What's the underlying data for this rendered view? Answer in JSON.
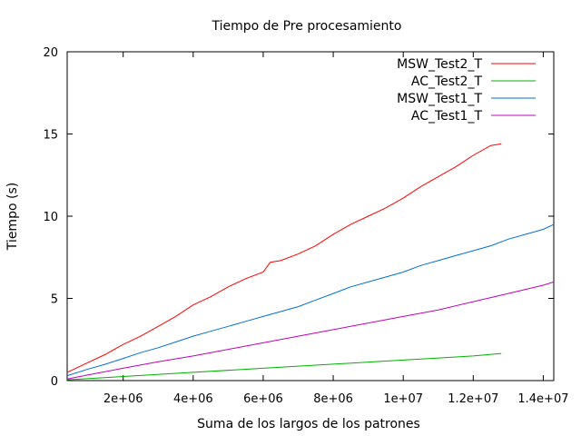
{
  "chart_data": {
    "type": "line",
    "title": "Tiempo de Pre procesamiento",
    "xlabel": "Suma de los largos de los patrones",
    "ylabel": "Tiempo (s)",
    "xlim": [
      400000,
      14300000
    ],
    "ylim": [
      0,
      20
    ],
    "x_ticks": [
      2000000,
      4000000,
      6000000,
      8000000,
      10000000,
      12000000,
      14000000
    ],
    "x_tick_labels": [
      "2e+06",
      "4e+06",
      "6e+06",
      "8e+06",
      "1e+07",
      "1.2e+07",
      "1.4e+07"
    ],
    "y_ticks": [
      0,
      5,
      10,
      15,
      20
    ],
    "y_tick_labels": [
      "0",
      "5",
      "10",
      "15",
      "20"
    ],
    "grid": false,
    "legend_position": "top-right",
    "series": [
      {
        "name": "MSW_Test2_T",
        "color": "#ff0000",
        "x": [
          400000,
          1000000,
          1500000,
          2000000,
          2500000,
          3000000,
          3500000,
          4000000,
          4500000,
          5000000,
          5500000,
          6000000,
          6200000,
          6500000,
          7000000,
          7500000,
          8000000,
          8500000,
          9000000,
          9500000,
          10000000,
          10500000,
          11000000,
          11500000,
          12000000,
          12500000,
          12800000
        ],
        "y": [
          0.5,
          1.1,
          1.6,
          2.2,
          2.7,
          3.3,
          3.9,
          4.6,
          5.1,
          5.7,
          6.2,
          6.6,
          7.2,
          7.3,
          7.7,
          8.2,
          8.9,
          9.5,
          10.0,
          10.5,
          11.1,
          11.8,
          12.4,
          13.0,
          13.7,
          14.3,
          14.4
        ]
      },
      {
        "name": "AC_Test2_T",
        "color": "#00b000",
        "x": [
          400000,
          2000000,
          4000000,
          6000000,
          8000000,
          10000000,
          12000000,
          12800000
        ],
        "y": [
          0.05,
          0.25,
          0.5,
          0.75,
          1.0,
          1.25,
          1.5,
          1.65
        ]
      },
      {
        "name": "MSW_Test1_T",
        "color": "#0070d8",
        "x": [
          400000,
          1000000,
          1500000,
          2000000,
          2500000,
          3000000,
          3500000,
          4000000,
          4500000,
          5000000,
          5500000,
          6000000,
          6500000,
          7000000,
          7500000,
          8000000,
          8500000,
          9000000,
          9500000,
          10000000,
          10500000,
          11000000,
          11500000,
          12000000,
          12500000,
          13000000,
          13500000,
          14000000,
          14300000
        ],
        "y": [
          0.3,
          0.7,
          1.0,
          1.35,
          1.7,
          2.0,
          2.35,
          2.7,
          3.0,
          3.3,
          3.6,
          3.9,
          4.2,
          4.5,
          4.9,
          5.3,
          5.7,
          6.0,
          6.3,
          6.6,
          7.0,
          7.3,
          7.6,
          7.9,
          8.2,
          8.6,
          8.9,
          9.2,
          9.5
        ]
      },
      {
        "name": "AC_Test1_T",
        "color": "#c000c0",
        "x": [
          400000,
          1000000,
          2000000,
          3000000,
          4000000,
          5000000,
          6000000,
          7000000,
          8000000,
          9000000,
          10000000,
          11000000,
          12000000,
          13000000,
          14000000,
          14300000
        ],
        "y": [
          0.1,
          0.35,
          0.75,
          1.15,
          1.5,
          1.9,
          2.3,
          2.7,
          3.1,
          3.5,
          3.9,
          4.3,
          4.8,
          5.3,
          5.8,
          6.0
        ]
      }
    ]
  }
}
